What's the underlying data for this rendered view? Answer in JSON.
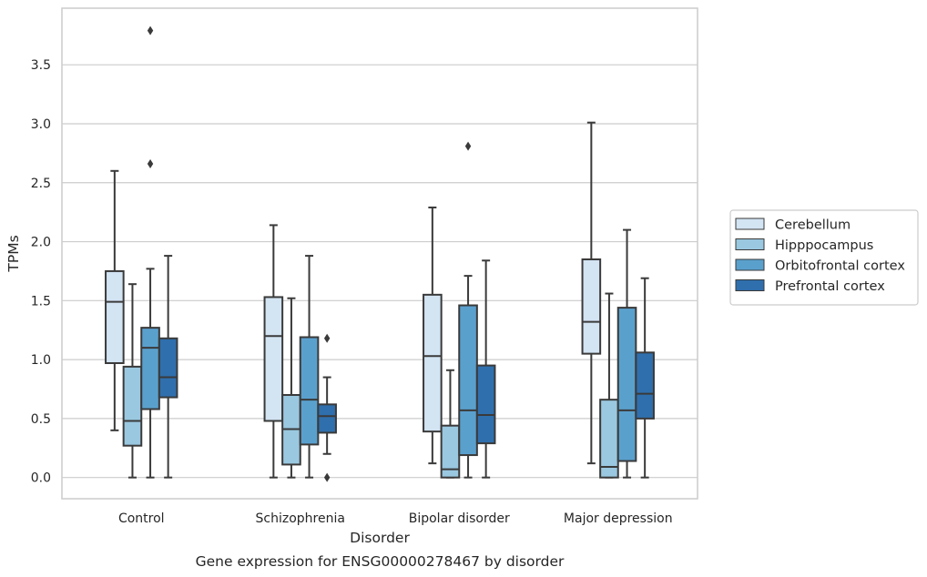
{
  "chart_data": {
    "type": "boxplot",
    "xlabel": "Disorder",
    "ylabel": "TPMs",
    "caption": "Gene expression for ENSG00000278467 by disorder",
    "categories": [
      "Control",
      "Schizophrenia",
      "Bipolar disorder",
      "Major depression"
    ],
    "ylim": [
      -0.18,
      3.98
    ],
    "yticks": [
      0.0,
      0.5,
      1.0,
      1.5,
      2.0,
      2.5,
      3.0,
      3.5
    ],
    "ytick_labels": [
      "0.0",
      "0.5",
      "1.0",
      "1.5",
      "2.0",
      "2.5",
      "3.0",
      "3.5"
    ],
    "grid": "horizontal",
    "legend_position": "outside-right",
    "series": [
      {
        "name": "Cerebellum",
        "color": "#d3e4f3",
        "boxes": [
          {
            "whislo": 0.4,
            "q1": 0.97,
            "med": 1.49,
            "q3": 1.75,
            "whishi": 2.6,
            "fliers": []
          },
          {
            "whislo": 0.0,
            "q1": 0.48,
            "med": 1.2,
            "q3": 1.53,
            "whishi": 2.14,
            "fliers": []
          },
          {
            "whislo": 0.12,
            "q1": 0.39,
            "med": 1.03,
            "q3": 1.55,
            "whishi": 2.29,
            "fliers": []
          },
          {
            "whislo": 0.12,
            "q1": 1.05,
            "med": 1.32,
            "q3": 1.85,
            "whishi": 3.01,
            "fliers": []
          }
        ]
      },
      {
        "name": "Hipppocampus",
        "color": "#9ac8e0",
        "boxes": [
          {
            "whislo": 0.0,
            "q1": 0.27,
            "med": 0.48,
            "q3": 0.94,
            "whishi": 1.64,
            "fliers": []
          },
          {
            "whislo": 0.0,
            "q1": 0.11,
            "med": 0.41,
            "q3": 0.7,
            "whishi": 1.52,
            "fliers": []
          },
          {
            "whislo": 0.0,
            "q1": 0.0,
            "med": 0.07,
            "q3": 0.44,
            "whishi": 0.91,
            "fliers": []
          },
          {
            "whislo": 0.0,
            "q1": 0.0,
            "med": 0.09,
            "q3": 0.66,
            "whishi": 1.56,
            "fliers": []
          }
        ]
      },
      {
        "name": "Orbitofrontal cortex",
        "color": "#5aa0cd",
        "boxes": [
          {
            "whislo": 0.0,
            "q1": 0.58,
            "med": 1.1,
            "q3": 1.27,
            "whishi": 1.77,
            "fliers": [
              2.66,
              3.79
            ]
          },
          {
            "whislo": 0.0,
            "q1": 0.28,
            "med": 0.66,
            "q3": 1.19,
            "whishi": 1.88,
            "fliers": []
          },
          {
            "whislo": 0.0,
            "q1": 0.19,
            "med": 0.57,
            "q3": 1.46,
            "whishi": 1.71,
            "fliers": [
              2.81
            ]
          },
          {
            "whislo": 0.0,
            "q1": 0.14,
            "med": 0.57,
            "q3": 1.44,
            "whishi": 2.1,
            "fliers": []
          }
        ]
      },
      {
        "name": "Prefrontal cortex",
        "color": "#2f6fad",
        "boxes": [
          {
            "whislo": 0.0,
            "q1": 0.68,
            "med": 0.85,
            "q3": 1.18,
            "whishi": 1.88,
            "fliers": []
          },
          {
            "whislo": 0.2,
            "q1": 0.38,
            "med": 0.52,
            "q3": 0.62,
            "whishi": 0.85,
            "fliers": [
              0.0,
              1.18
            ]
          },
          {
            "whislo": 0.0,
            "q1": 0.29,
            "med": 0.53,
            "q3": 0.95,
            "whishi": 1.84,
            "fliers": []
          },
          {
            "whislo": 0.0,
            "q1": 0.5,
            "med": 0.71,
            "q3": 1.06,
            "whishi": 1.69,
            "fliers": []
          }
        ]
      }
    ]
  },
  "style": {
    "edge_color": "#3a3a3a",
    "grid_color": "#cccccc",
    "frame_color": "#cccccc",
    "text_color": "#262626"
  }
}
